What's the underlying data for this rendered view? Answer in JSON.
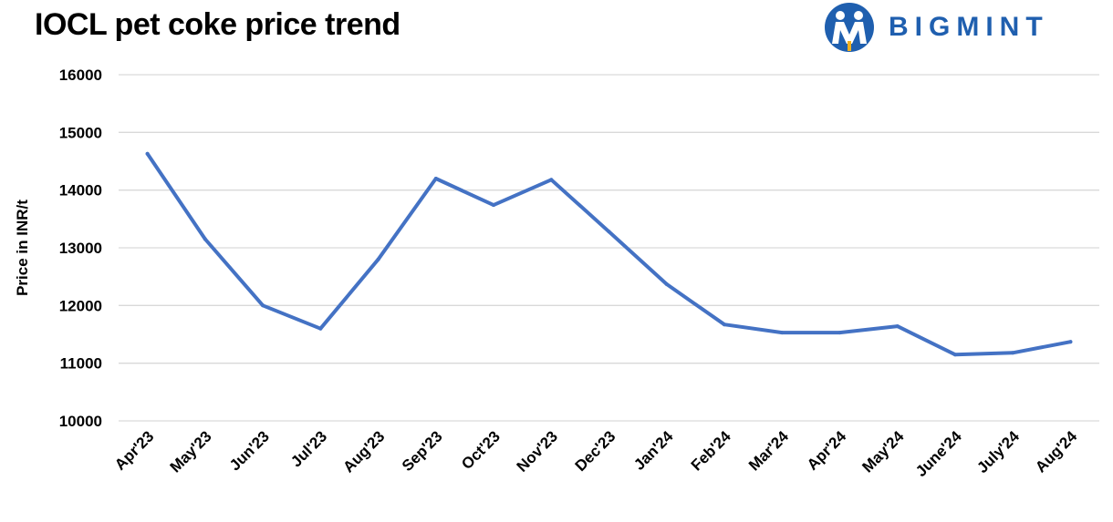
{
  "title": "IOCL pet coke price trend",
  "brand": {
    "name": "BIGMINT",
    "logo_icon": "bigmint-people-logo-icon",
    "color": "#1F5FAF"
  },
  "chart_data": {
    "type": "line",
    "title": "IOCL pet coke price trend",
    "xlabel": "",
    "ylabel": "Price in INR/t",
    "ylim": [
      10000,
      16000
    ],
    "yticks": [
      10000,
      11000,
      12000,
      13000,
      14000,
      15000,
      16000
    ],
    "grid": true,
    "legend": "none",
    "categories": [
      "Apr'23",
      "May'23",
      "Jun'23",
      "Jul'23",
      "Aug'23",
      "Sep'23",
      "Oct'23",
      "Nov'23",
      "Dec'23",
      "Jan'24",
      "Feb'24",
      "Mar'24",
      "Apr'24",
      "May'24",
      "June'24",
      "July'24",
      "Aug'24"
    ],
    "series": [
      {
        "color": "#4472C4",
        "values": [
          14630,
          13150,
          12000,
          11600,
          12800,
          14200,
          13740,
          14180,
          13280,
          12370,
          11670,
          11530,
          11530,
          11640,
          11150,
          11180,
          11370
        ]
      }
    ]
  }
}
